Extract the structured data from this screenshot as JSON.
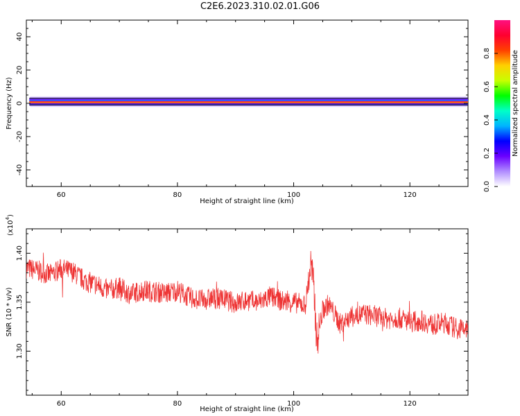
{
  "title": "C2E6.2023.310.02.01.G06",
  "chart_data": [
    {
      "type": "heatmap",
      "xlabel": "Height of straight line (km)",
      "ylabel": "Frequency (Hz)",
      "xlim": [
        54,
        130
      ],
      "ylim": [
        -50,
        50
      ],
      "xticks": [
        60,
        80,
        100,
        120
      ],
      "yticks": [
        -40,
        -20,
        0,
        20,
        40
      ],
      "band": {
        "center_hz": 1,
        "half_width_hz": 2,
        "x_start": 54.5,
        "x_end": 130
      },
      "colorbar": {
        "label": "Normalized spectral amplitude",
        "range": [
          0,
          1
        ],
        "ticks": [
          "0.0",
          "0.2",
          "0.4",
          "0.6",
          "0.8"
        ],
        "colors": [
          "#ffffff",
          "#b08cff",
          "#6a00ff",
          "#0000ff",
          "#00b4ff",
          "#00ffc8",
          "#00ff00",
          "#c8ff00",
          "#ffd000",
          "#ff4000",
          "#ff0030",
          "#ff1080"
        ]
      }
    },
    {
      "type": "line",
      "xlabel": "Height of straight line (km)",
      "ylabel": "SNR (10 * v/v)",
      "scale_label_base": "(x10",
      "scale_label_exp": "4",
      "scale_label_end": ")",
      "xlim": [
        54,
        130
      ],
      "ylim": [
        1.255,
        1.425
      ],
      "xticks": [
        60,
        80,
        100,
        120
      ],
      "yticks": [
        "1.30",
        "1.35",
        "1.40"
      ],
      "ytick_values": [
        1.3,
        1.35,
        1.4
      ],
      "series": [
        {
          "color": "#ee3333",
          "x": [
            54,
            56,
            58,
            60,
            62,
            64,
            66,
            68,
            70,
            72,
            74,
            76,
            78,
            80,
            82,
            84,
            86,
            88,
            90,
            92,
            94,
            96,
            98,
            100,
            102,
            103,
            103.5,
            104,
            105,
            106,
            108,
            110,
            112,
            114,
            116,
            118,
            120,
            122,
            124,
            126,
            128,
            130
          ],
          "y": [
            1.385,
            1.382,
            1.378,
            1.384,
            1.381,
            1.372,
            1.368,
            1.362,
            1.365,
            1.358,
            1.362,
            1.361,
            1.359,
            1.362,
            1.355,
            1.352,
            1.354,
            1.353,
            1.349,
            1.352,
            1.35,
            1.356,
            1.351,
            1.35,
            1.347,
            1.39,
            1.36,
            1.31,
            1.342,
            1.348,
            1.328,
            1.335,
            1.338,
            1.336,
            1.333,
            1.334,
            1.33,
            1.331,
            1.327,
            1.329,
            1.323,
            1.322
          ]
        }
      ]
    }
  ]
}
